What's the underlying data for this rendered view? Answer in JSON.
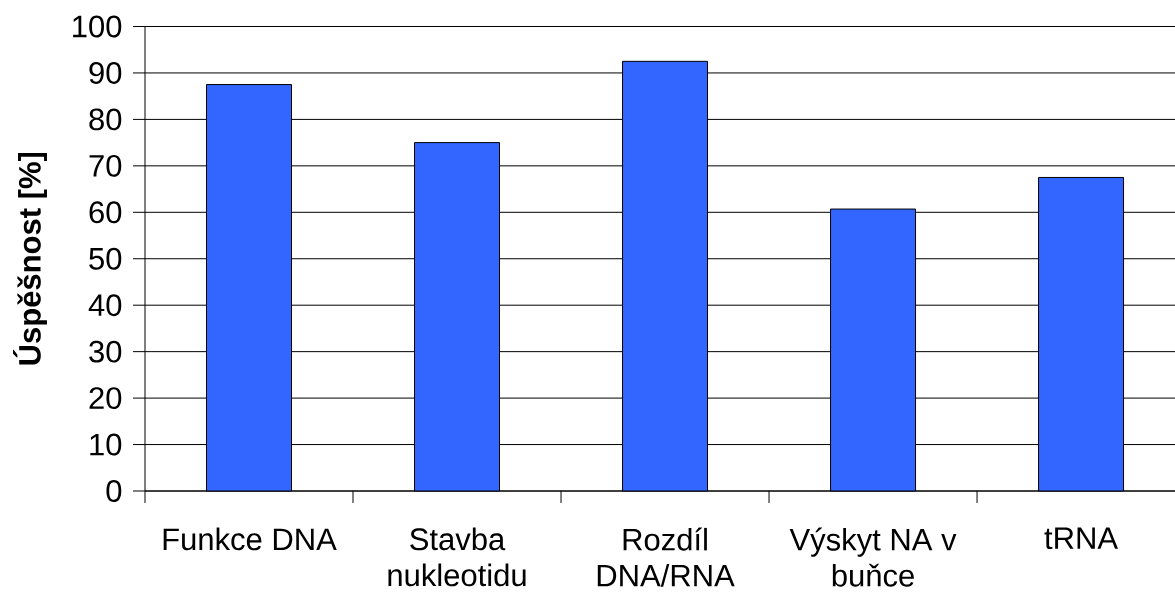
{
  "chart_data": {
    "type": "bar",
    "ylabel": "Úspěšnost [%]",
    "categories": [
      "Funkce DNA",
      "Stavba nukleotidu",
      "Rozdíl DNA/RNA",
      "Výskyt NA v buňce",
      "tRNA"
    ],
    "values": [
      87.5,
      75,
      92.5,
      60.7,
      67.5
    ],
    "color": "#3366ff",
    "ylim": [
      0,
      100
    ],
    "yticks": [
      0,
      10,
      20,
      30,
      40,
      50,
      60,
      70,
      80,
      90,
      100
    ],
    "grid": "y"
  }
}
